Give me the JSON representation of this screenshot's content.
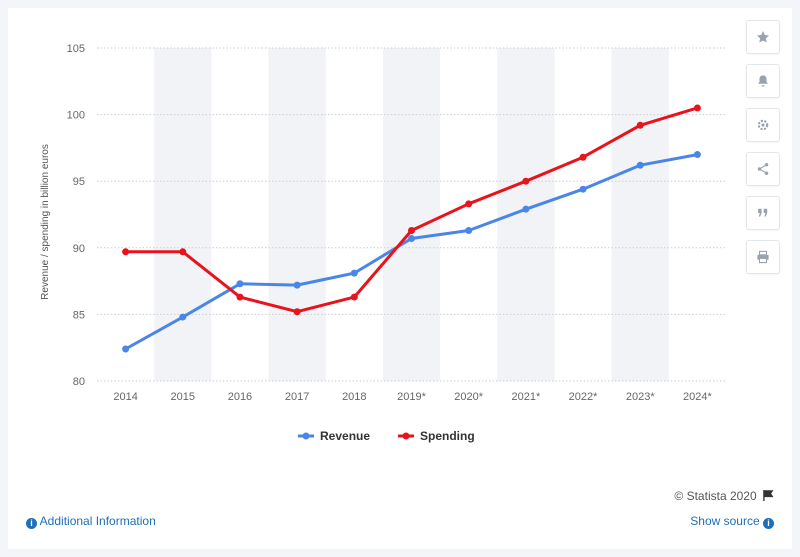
{
  "chart_data": {
    "type": "line",
    "categories": [
      "2014",
      "2015",
      "2016",
      "2017",
      "2018",
      "2019*",
      "2020*",
      "2021*",
      "2022*",
      "2023*",
      "2024*"
    ],
    "series": [
      {
        "name": "Revenue",
        "color": "#4a86e8",
        "values": [
          82.4,
          84.8,
          87.3,
          87.2,
          88.1,
          90.7,
          91.3,
          92.9,
          94.4,
          96.2,
          97.0
        ]
      },
      {
        "name": "Spending",
        "color": "#e8131b",
        "values": [
          89.7,
          89.7,
          86.3,
          85.2,
          86.3,
          91.3,
          93.3,
          95.0,
          96.8,
          99.2,
          100.5
        ]
      }
    ],
    "ylabel": "Revenue / spending in billion euros",
    "ylim": [
      80,
      105
    ],
    "yticks": [
      80,
      85,
      90,
      95,
      100,
      105
    ],
    "grid": true,
    "legend_position": "bottom"
  },
  "toolbar": {
    "buttons": [
      {
        "icon": "star-icon"
      },
      {
        "icon": "bell-icon"
      },
      {
        "icon": "gear-icon"
      },
      {
        "icon": "share-icon"
      },
      {
        "icon": "quote-icon"
      },
      {
        "icon": "print-icon"
      }
    ]
  },
  "footer": {
    "credit": "© Statista 2020",
    "additional_info": "Additional Information",
    "show_source": "Show source"
  }
}
